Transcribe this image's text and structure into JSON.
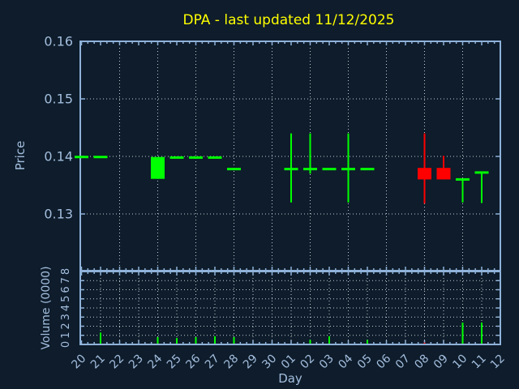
{
  "title": "DPA - last updated 11/12/2025",
  "xlabel": "Day",
  "price_panel": {
    "ylabel": "Price",
    "yticks": [
      "0.16",
      "0.15",
      "0.14",
      "0.13"
    ]
  },
  "volume_panel": {
    "ylabel": "Volume (0000)",
    "yticks": [
      "0",
      "1",
      "2",
      "3",
      "4",
      "5",
      "6",
      "7",
      "8"
    ]
  },
  "colors": {
    "background": "#0e1c2b",
    "axis": "#8fb2d9",
    "text": "#a3bede",
    "grid": "#c4ccd6",
    "up": "#00ff00",
    "down": "#ff0000",
    "title": "#ffff00"
  },
  "chart_data": {
    "type": "candlestick",
    "title": "DPA - last updated 11/12/2025",
    "xlabel": "Day",
    "price_ylabel": "Price",
    "volume_ylabel": "Volume (0000)",
    "price_ylim": [
      0.12,
      0.16
    ],
    "volume_ylim": [
      0,
      8
    ],
    "grid": "dotted",
    "categories": [
      "20",
      "21",
      "22",
      "23",
      "24",
      "25",
      "26",
      "27",
      "28",
      "29",
      "30",
      "01",
      "02",
      "03",
      "04",
      "05",
      "06",
      "07",
      "08",
      "09",
      "10",
      "11",
      "12"
    ],
    "candles": [
      {
        "day": "20",
        "high": 0.1399,
        "low": 0.1399,
        "body_top": 0.1399,
        "body_bottom": 0.1399,
        "color": "up"
      },
      {
        "day": "21",
        "high": 0.1399,
        "low": 0.1399,
        "body_top": 0.1399,
        "body_bottom": 0.1399,
        "color": "up"
      },
      {
        "day": "24",
        "high": 0.1399,
        "low": 0.1361,
        "body_top": 0.1399,
        "body_bottom": 0.1361,
        "color": "up"
      },
      {
        "day": "25",
        "high": 0.1398,
        "low": 0.1398,
        "body_top": 0.1398,
        "body_bottom": 0.1398,
        "color": "up"
      },
      {
        "day": "26",
        "high": 0.1398,
        "low": 0.1398,
        "body_top": 0.1398,
        "body_bottom": 0.1398,
        "color": "up"
      },
      {
        "day": "27",
        "high": 0.1398,
        "low": 0.1398,
        "body_top": 0.1398,
        "body_bottom": 0.1398,
        "color": "up"
      },
      {
        "day": "28",
        "high": 0.1378,
        "low": 0.1378,
        "body_top": 0.1378,
        "body_bottom": 0.1378,
        "color": "up"
      },
      {
        "day": "01",
        "high": 0.144,
        "low": 0.132,
        "body_top": 0.1378,
        "body_bottom": 0.1378,
        "color": "up"
      },
      {
        "day": "02",
        "high": 0.144,
        "low": 0.137,
        "body_top": 0.1378,
        "body_bottom": 0.1378,
        "color": "up"
      },
      {
        "day": "03",
        "high": 0.1378,
        "low": 0.1378,
        "body_top": 0.1378,
        "body_bottom": 0.1378,
        "color": "up"
      },
      {
        "day": "04",
        "high": 0.144,
        "low": 0.132,
        "body_top": 0.1378,
        "body_bottom": 0.1378,
        "color": "up"
      },
      {
        "day": "05",
        "high": 0.1378,
        "low": 0.1378,
        "body_top": 0.1378,
        "body_bottom": 0.1378,
        "color": "up"
      },
      {
        "day": "08",
        "high": 0.144,
        "low": 0.1318,
        "body_top": 0.138,
        "body_bottom": 0.136,
        "color": "down"
      },
      {
        "day": "09",
        "high": 0.1401,
        "low": 0.136,
        "body_top": 0.138,
        "body_bottom": 0.136,
        "color": "down"
      },
      {
        "day": "10",
        "high": 0.136,
        "low": 0.132,
        "body_top": 0.136,
        "body_bottom": 0.136,
        "color": "up"
      },
      {
        "day": "11",
        "high": 0.1372,
        "low": 0.1319,
        "body_top": 0.1372,
        "body_bottom": 0.1372,
        "color": "up"
      }
    ],
    "volumes": [
      {
        "day": "21",
        "value": 1.3,
        "color": "up"
      },
      {
        "day": "24",
        "value": 0.8,
        "color": "up"
      },
      {
        "day": "25",
        "value": 0.7,
        "color": "up"
      },
      {
        "day": "26",
        "value": 0.8,
        "color": "up"
      },
      {
        "day": "27",
        "value": 0.9,
        "color": "up"
      },
      {
        "day": "28",
        "value": 0.8,
        "color": "up"
      },
      {
        "day": "02",
        "value": 0.5,
        "color": "up"
      },
      {
        "day": "03",
        "value": 0.9,
        "color": "up"
      },
      {
        "day": "05",
        "value": 0.5,
        "color": "up"
      },
      {
        "day": "08",
        "value": 0.2,
        "color": "down"
      },
      {
        "day": "10",
        "value": 2.4,
        "color": "up"
      },
      {
        "day": "11",
        "value": 2.4,
        "color": "up"
      }
    ]
  }
}
